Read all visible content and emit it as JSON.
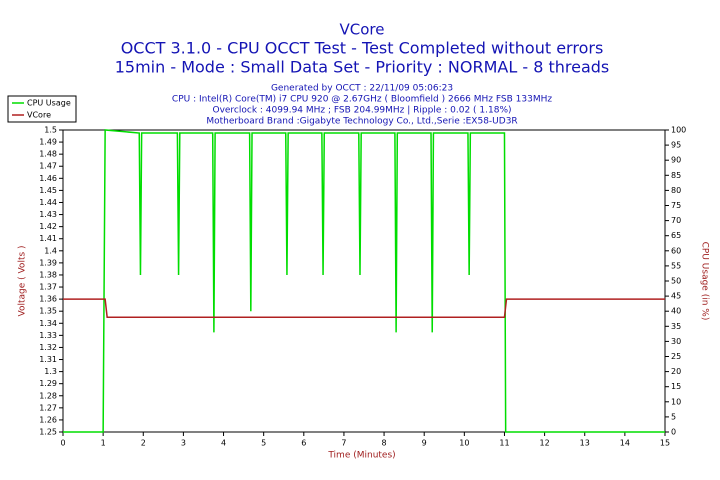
{
  "chart_data": {
    "type": "line",
    "title": "VCore",
    "subtitle": [
      "OCCT 3.1.0 - CPU OCCT Test - Test Completed without errors",
      "15min - Mode : Small Data Set - Priority : NORMAL - 8 threads"
    ],
    "notes": [
      "Generated by OCCT : 22/11/09 05:06:23",
      "CPU : Intel(R) Core(TM) i7 CPU 920 @ 2.67GHz ( Bloomfield ) 2666 MHz FSB 133MHz",
      "Overclock : 4099.94 MHz ; FSB 204.99MHz | Ripple : 0.02 ( 1.18%)",
      "Motherboard Brand :Gigabyte Technology Co., Ltd.,Serie :EX58-UD3R"
    ],
    "x_label": "Time (Minutes)",
    "y_label": "Voltage ( Volts )",
    "y2_label": "CPU Usage (in %)",
    "xlim": [
      0,
      15
    ],
    "xticks": [
      0,
      1,
      2,
      3,
      4,
      5,
      6,
      7,
      8,
      9,
      10,
      11,
      12,
      13,
      14,
      15
    ],
    "ylim": [
      1.25,
      1.5
    ],
    "yticks": [
      1.25,
      1.26,
      1.27,
      1.28,
      1.29,
      1.3,
      1.31,
      1.32,
      1.33,
      1.34,
      1.35,
      1.36,
      1.37,
      1.38,
      1.39,
      1.4,
      1.41,
      1.42,
      1.43,
      1.44,
      1.45,
      1.46,
      1.47,
      1.48,
      1.49,
      1.5
    ],
    "y2lim": [
      0,
      100
    ],
    "y2ticks": [
      0,
      5,
      10,
      15,
      20,
      25,
      30,
      35,
      40,
      45,
      50,
      55,
      60,
      65,
      70,
      75,
      80,
      85,
      90,
      95,
      100
    ],
    "legend": "top-left",
    "series": [
      {
        "name": "CPU Usage",
        "color": "#00dd00",
        "axis": "y2",
        "x": [
          0,
          1.0,
          1.05,
          1.9,
          1.93,
          1.96,
          2.85,
          2.88,
          2.91,
          3.73,
          3.76,
          3.79,
          4.65,
          4.68,
          4.71,
          5.55,
          5.58,
          5.61,
          6.45,
          6.48,
          6.51,
          7.37,
          7.4,
          7.43,
          8.27,
          8.3,
          8.33,
          9.17,
          9.2,
          9.23,
          10.09,
          10.12,
          10.15,
          11.0,
          11.03,
          15
        ],
        "values": [
          0,
          0,
          100,
          99,
          52,
          99,
          99,
          52,
          99,
          99,
          33,
          99,
          99,
          40,
          99,
          99,
          52,
          99,
          99,
          52,
          99,
          99,
          52,
          99,
          99,
          33,
          99,
          99,
          33,
          99,
          99,
          52,
          99,
          99,
          0,
          0
        ]
      },
      {
        "name": "VCore",
        "color": "#b02020",
        "x": [
          0,
          1.05,
          1.1,
          11.0,
          11.05,
          15
        ],
        "values": [
          1.36,
          1.36,
          1.345,
          1.345,
          1.36,
          1.36
        ]
      }
    ]
  }
}
